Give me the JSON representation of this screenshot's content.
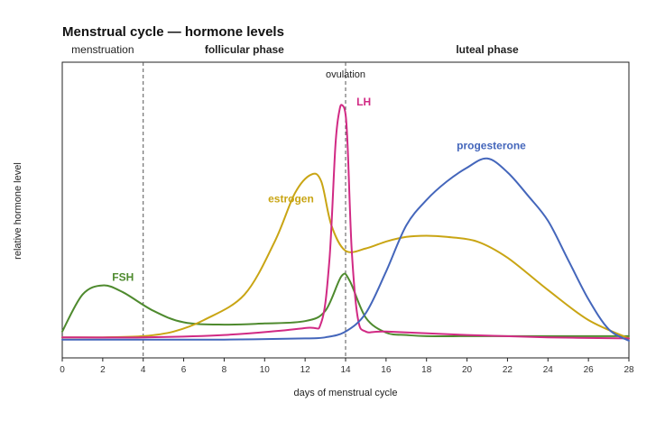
{
  "chart_data": {
    "type": "line",
    "title": "Menstrual cycle — hormone levels",
    "xlabel": "days of menstrual cycle",
    "ylabel": "relative hormone level",
    "xlim": [
      0,
      28
    ],
    "ylim": [
      0,
      1
    ],
    "x_ticks": [
      0,
      2,
      4,
      6,
      8,
      10,
      12,
      14,
      16,
      18,
      20,
      22,
      24,
      26,
      28
    ],
    "grid": false,
    "legend": "inline labels",
    "phases": [
      {
        "label": "menstruation",
        "bold": false,
        "x_center": 2
      },
      {
        "label": "follicular phase",
        "bold": true,
        "x_center": 9
      },
      {
        "label": "luteal phase",
        "bold": true,
        "x_center": 21
      }
    ],
    "markers": [
      {
        "x": 4,
        "label": ""
      },
      {
        "x": 14,
        "label": "ovulation"
      }
    ],
    "series": [
      {
        "name": "FSH",
        "color": "#4e8a2e",
        "label_at": [
          3,
          0.26
        ],
        "x": [
          0,
          1,
          2,
          3,
          4.5,
          6,
          8,
          10,
          12,
          13,
          13.8,
          14.2,
          15,
          16,
          17,
          18,
          20,
          22,
          24,
          26,
          28
        ],
        "y": [
          0.04,
          0.2,
          0.24,
          0.21,
          0.13,
          0.08,
          0.07,
          0.075,
          0.085,
          0.13,
          0.28,
          0.26,
          0.1,
          0.035,
          0.025,
          0.02,
          0.02,
          0.02,
          0.02,
          0.02,
          0.02
        ]
      },
      {
        "name": "estrogen",
        "color": "#c9a514",
        "label_at": [
          11.3,
          0.6
        ],
        "x": [
          0,
          2,
          4,
          5.5,
          7,
          9,
          10.5,
          11.5,
          12.3,
          12.8,
          13.3,
          14,
          15,
          16,
          17,
          18,
          19,
          20.5,
          22,
          24,
          26,
          28
        ],
        "y": [
          0.015,
          0.015,
          0.02,
          0.04,
          0.09,
          0.2,
          0.43,
          0.64,
          0.72,
          0.69,
          0.5,
          0.39,
          0.4,
          0.43,
          0.45,
          0.455,
          0.45,
          0.43,
          0.36,
          0.22,
          0.09,
          0.01
        ]
      },
      {
        "name": "LH",
        "color": "#d12a84",
        "label_at": [
          14.9,
          1.02
        ],
        "x": [
          0,
          4,
          8,
          12,
          12.8,
          13.2,
          13.5,
          13.7,
          13.85,
          14,
          14.1,
          14.3,
          14.6,
          15,
          16,
          20,
          24,
          28
        ],
        "y": [
          0.015,
          0.015,
          0.025,
          0.055,
          0.08,
          0.35,
          0.85,
          1.0,
          1.02,
          0.98,
          0.85,
          0.4,
          0.1,
          0.04,
          0.04,
          0.025,
          0.015,
          0.01
        ]
      },
      {
        "name": "progesterone",
        "color": "#4466bb",
        "label_at": [
          21.2,
          0.83
        ],
        "x": [
          0,
          4,
          8,
          12,
          13,
          14,
          15,
          16,
          17,
          18,
          19,
          20,
          21,
          22,
          23,
          24,
          25,
          26,
          27,
          28
        ],
        "y": [
          0.005,
          0.005,
          0.005,
          0.01,
          0.015,
          0.04,
          0.12,
          0.3,
          0.5,
          0.61,
          0.69,
          0.75,
          0.79,
          0.73,
          0.63,
          0.52,
          0.35,
          0.18,
          0.05,
          0.0
        ]
      }
    ]
  }
}
